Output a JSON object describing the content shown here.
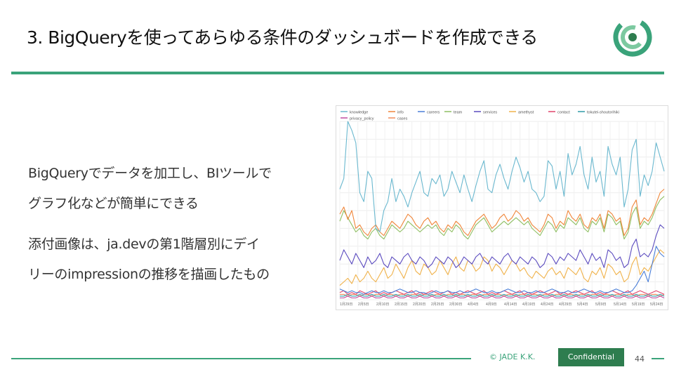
{
  "slide": {
    "title": "3. BigQueryを使ってあらゆる条件のダッシュボードを作成できる",
    "body": [
      "BigQueryでデータを加工し、BIツールで",
      "グラフ化などが簡単にできる",
      "添付画像は、ja.devの第1階層別にデイ",
      "リーのimpressionの推移を描画したもの"
    ],
    "footer": {
      "copyright": "© JADE K.K.",
      "confidential": "Confidential",
      "page": "44"
    },
    "colors": {
      "accent": "#3aa37a",
      "badge": "#2e7d4f"
    }
  },
  "chart_data": {
    "type": "line",
    "title": "",
    "xlabel": "",
    "ylabel": "",
    "grid": true,
    "legend_position": "top-left",
    "x_ticks": [
      "1月29日",
      "2月5日",
      "2月10日",
      "2月15日",
      "2月20日",
      "2月25日",
      "2月30日",
      "4月4日",
      "4月9日",
      "4月14日",
      "4月19日",
      "4月24日",
      "4月29日",
      "5月4日",
      "5月9日",
      "5月14日",
      "5月19日",
      "5月24日"
    ],
    "ylim": [
      0,
      100
    ],
    "series": [
      {
        "name": "knowledge",
        "color": "#6ab8cf",
        "values": [
          62,
          68,
          100,
          95,
          88,
          60,
          55,
          72,
          68,
          40,
          38,
          50,
          55,
          68,
          55,
          62,
          58,
          52,
          60,
          66,
          72,
          60,
          58,
          68,
          65,
          70,
          58,
          62,
          72,
          66,
          60,
          70,
          62,
          55,
          64,
          72,
          78,
          62,
          60,
          70,
          76,
          68,
          62,
          72,
          80,
          74,
          66,
          72,
          62,
          60,
          55,
          58,
          78,
          75,
          62,
          72,
          58,
          82,
          70,
          76,
          86,
          70,
          62,
          80,
          66,
          72,
          58,
          86,
          76,
          70,
          80,
          52,
          62,
          84,
          90,
          58,
          70,
          64,
          72,
          88,
          80,
          72
        ]
      },
      {
        "name": "info",
        "color": "#f0863a",
        "values": [
          48,
          52,
          45,
          50,
          40,
          42,
          38,
          36,
          40,
          42,
          38,
          36,
          40,
          44,
          42,
          40,
          44,
          48,
          46,
          42,
          40,
          44,
          46,
          42,
          44,
          40,
          38,
          42,
          40,
          44,
          42,
          38,
          36,
          40,
          44,
          46,
          48,
          44,
          40,
          42,
          46,
          48,
          44,
          46,
          50,
          48,
          44,
          46,
          42,
          40,
          38,
          42,
          48,
          46,
          40,
          44,
          42,
          50,
          46,
          44,
          48,
          42,
          40,
          46,
          44,
          48,
          40,
          50,
          48,
          44,
          46,
          36,
          40,
          52,
          56,
          42,
          46,
          44,
          48,
          54,
          60,
          62
        ]
      },
      {
        "name": "careers",
        "color": "#4a7ed8",
        "values": [
          6,
          5,
          4,
          5,
          4,
          4,
          3,
          4,
          5,
          4,
          4,
          5,
          4,
          4,
          5,
          6,
          5,
          4,
          4,
          5,
          4,
          4,
          3,
          4,
          5,
          4,
          4,
          5,
          4,
          4,
          5,
          4,
          4,
          5,
          6,
          5,
          4,
          4,
          5,
          4,
          4,
          5,
          6,
          5,
          4,
          4,
          5,
          4,
          4,
          5,
          4,
          4,
          5,
          6,
          5,
          4,
          4,
          5,
          4,
          4,
          5,
          6,
          5,
          4,
          4,
          5,
          4,
          4,
          5,
          6,
          5,
          4,
          4,
          5,
          8,
          12,
          16,
          10,
          20,
          30,
          26,
          24
        ]
      },
      {
        "name": "team",
        "color": "#8fbf63",
        "values": [
          44,
          50,
          46,
          42,
          38,
          40,
          36,
          34,
          38,
          40,
          36,
          34,
          38,
          42,
          40,
          38,
          40,
          44,
          42,
          40,
          38,
          40,
          42,
          40,
          42,
          38,
          36,
          40,
          38,
          42,
          40,
          36,
          34,
          38,
          42,
          44,
          46,
          42,
          38,
          40,
          42,
          44,
          42,
          44,
          46,
          44,
          42,
          44,
          40,
          38,
          36,
          40,
          44,
          42,
          38,
          42,
          40,
          46,
          44,
          42,
          46,
          40,
          38,
          44,
          42,
          46,
          38,
          48,
          46,
          42,
          44,
          34,
          38,
          48,
          52,
          40,
          44,
          42,
          46,
          52,
          56,
          58
        ]
      },
      {
        "name": "services",
        "color": "#5b4bbf",
        "values": [
          22,
          28,
          24,
          20,
          26,
          22,
          18,
          24,
          20,
          22,
          26,
          20,
          18,
          24,
          22,
          20,
          24,
          26,
          22,
          20,
          24,
          22,
          18,
          20,
          24,
          22,
          20,
          24,
          22,
          18,
          20,
          24,
          22,
          20,
          24,
          26,
          22,
          20,
          24,
          22,
          20,
          24,
          26,
          22,
          20,
          24,
          22,
          20,
          24,
          22,
          18,
          20,
          26,
          24,
          20,
          24,
          22,
          26,
          24,
          22,
          28,
          24,
          20,
          26,
          22,
          24,
          18,
          28,
          26,
          22,
          24,
          18,
          20,
          30,
          34,
          24,
          26,
          24,
          28,
          36,
          42,
          40
        ]
      },
      {
        "name": "amethyst",
        "color": "#f0b24a",
        "values": [
          8,
          10,
          12,
          9,
          14,
          10,
          12,
          16,
          12,
          10,
          14,
          18,
          12,
          14,
          20,
          16,
          12,
          18,
          22,
          16,
          14,
          20,
          18,
          14,
          16,
          22,
          18,
          14,
          20,
          24,
          18,
          16,
          22,
          20,
          16,
          18,
          24,
          22,
          16,
          20,
          18,
          14,
          18,
          22,
          20,
          16,
          18,
          14,
          12,
          16,
          14,
          12,
          16,
          18,
          14,
          16,
          12,
          18,
          16,
          14,
          18,
          12,
          10,
          16,
          14,
          18,
          12,
          20,
          18,
          14,
          16,
          10,
          12,
          20,
          24,
          14,
          18,
          16,
          20,
          24,
          28,
          26
        ]
      },
      {
        "name": "contact",
        "color": "#e0456b",
        "values": [
          4,
          5,
          3,
          4,
          3,
          5,
          4,
          3,
          4,
          5,
          3,
          4,
          3,
          4,
          5,
          4,
          3,
          4,
          5,
          3,
          4,
          3,
          4,
          5,
          4,
          3,
          4,
          5,
          3,
          4,
          3,
          4,
          5,
          4,
          3,
          4,
          5,
          3,
          4,
          3,
          4,
          5,
          4,
          3,
          4,
          5,
          3,
          4,
          3,
          4,
          5,
          4,
          3,
          4,
          5,
          3,
          4,
          3,
          4,
          5,
          4,
          3,
          4,
          5,
          3,
          4,
          3,
          4,
          5,
          4,
          3,
          4,
          5,
          3,
          4,
          5,
          4,
          3,
          4,
          5,
          4,
          3
        ]
      },
      {
        "name": "tokutei-shoutorihiki",
        "color": "#2f9aa8",
        "values": [
          2,
          2,
          3,
          2,
          2,
          3,
          2,
          2,
          3,
          2,
          2,
          3,
          2,
          2,
          3,
          2,
          2,
          3,
          2,
          2,
          3,
          2,
          2,
          3,
          2,
          2,
          3,
          2,
          2,
          3,
          2,
          2,
          3,
          2,
          2,
          3,
          2,
          2,
          3,
          2,
          2,
          3,
          2,
          2,
          3,
          2,
          2,
          3,
          2,
          2,
          3,
          2,
          2,
          3,
          2,
          2,
          3,
          2,
          2,
          3,
          2,
          2,
          3,
          2,
          2,
          3,
          2,
          2,
          3,
          2,
          2,
          3,
          2,
          2,
          3,
          2,
          2,
          3,
          2,
          2,
          3,
          2
        ]
      },
      {
        "name": "privacy_policy",
        "color": "#c04aa0",
        "values": [
          1,
          1,
          2,
          1,
          1,
          2,
          1,
          1,
          2,
          1,
          1,
          2,
          1,
          1,
          2,
          1,
          1,
          2,
          1,
          1,
          2,
          1,
          1,
          2,
          1,
          1,
          2,
          1,
          1,
          2,
          1,
          1,
          2,
          1,
          1,
          2,
          1,
          1,
          2,
          1,
          1,
          2,
          1,
          1,
          2,
          1,
          1,
          2,
          1,
          1,
          2,
          1,
          1,
          2,
          1,
          1,
          2,
          1,
          1,
          2,
          1,
          1,
          2,
          1,
          1,
          2,
          1,
          1,
          2,
          1,
          1,
          2,
          1,
          1,
          2,
          1,
          1,
          2,
          1,
          1,
          2,
          1
        ]
      },
      {
        "name": "cases",
        "color": "#f08a5a",
        "values": [
          3,
          3,
          2,
          3,
          3,
          2,
          3,
          3,
          2,
          3,
          3,
          2,
          3,
          3,
          2,
          3,
          3,
          2,
          3,
          3,
          2,
          3,
          3,
          2,
          3,
          3,
          2,
          3,
          3,
          2,
          3,
          3,
          2,
          3,
          3,
          2,
          3,
          3,
          2,
          3,
          3,
          2,
          3,
          3,
          2,
          3,
          3,
          2,
          3,
          3,
          2,
          3,
          3,
          2,
          3,
          3,
          2,
          3,
          3,
          2,
          3,
          3,
          2,
          3,
          3,
          2,
          3,
          3,
          2,
          3,
          3,
          2,
          3,
          3,
          2,
          3,
          3,
          2,
          3,
          3,
          2,
          3
        ]
      }
    ]
  }
}
